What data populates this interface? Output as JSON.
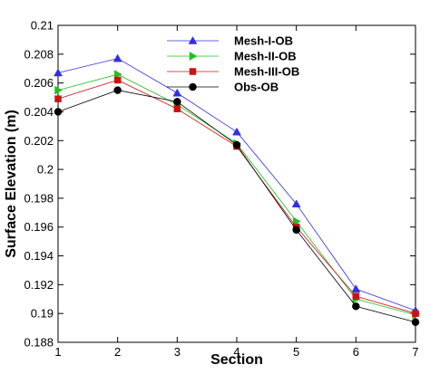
{
  "chart_data": {
    "type": "line",
    "xlabel": "Section",
    "ylabel": "Surface Elevation (m)",
    "xlim": [
      1,
      7
    ],
    "ylim": [
      0.188,
      0.21
    ],
    "xticks": [
      1,
      2,
      3,
      4,
      5,
      6,
      7
    ],
    "yticks": [
      0.188,
      0.19,
      0.192,
      0.194,
      0.196,
      0.198,
      0.2,
      0.202,
      0.204,
      0.206,
      0.208,
      0.21
    ],
    "ytick_labels": [
      "0.188",
      "0.19",
      "0.192",
      "0.194",
      "0.196",
      "0.198",
      "0.2",
      "0.202",
      "0.204",
      "0.206",
      "0.208",
      "0.21"
    ],
    "grid": false,
    "legend_position": "top-right",
    "x": [
      1,
      2,
      3,
      4,
      5,
      6,
      7
    ],
    "series": [
      {
        "name": "Mesh-I-OB",
        "color": "#3030e0",
        "marker": "triangle-up",
        "values": [
          0.2067,
          0.2077,
          0.2053,
          0.2026,
          0.1976,
          0.1917,
          0.1902
        ]
      },
      {
        "name": "Mesh-II-OB",
        "color": "#20c020",
        "marker": "triangle-right",
        "values": [
          0.2055,
          0.2066,
          0.2045,
          0.2018,
          0.1964,
          0.191,
          0.1899
        ]
      },
      {
        "name": "Mesh-III-OB",
        "color": "#d01010",
        "marker": "square",
        "values": [
          0.2049,
          0.2062,
          0.2042,
          0.2016,
          0.196,
          0.1912,
          0.19
        ]
      },
      {
        "name": "Obs-OB",
        "color": "#000000",
        "marker": "circle",
        "values": [
          0.204,
          0.2055,
          0.2047,
          0.2017,
          0.1958,
          0.1905,
          0.1894
        ]
      }
    ]
  }
}
